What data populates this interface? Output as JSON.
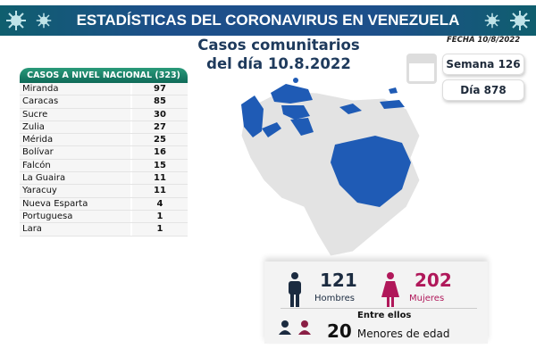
{
  "header": {
    "title": "ESTADÍSTICAS DEL CORONAVIRUS EN VENEZUELA"
  },
  "subtitle": {
    "line1": "Casos comunitarios",
    "line2": "del día 10.8.2022"
  },
  "fecha": "FECHA 10/8/2022",
  "semana": "Semana 126",
  "dia": "Día 878",
  "table": {
    "header": "CASOS A NIVEL NACIONAL (323)",
    "rows": [
      {
        "state": "Miranda",
        "cases": "97"
      },
      {
        "state": "Caracas",
        "cases": "85"
      },
      {
        "state": "Sucre",
        "cases": "30"
      },
      {
        "state": "Zulia",
        "cases": "27"
      },
      {
        "state": "Mérida",
        "cases": "25"
      },
      {
        "state": "Bolívar",
        "cases": "16"
      },
      {
        "state": "Falcón",
        "cases": "15"
      },
      {
        "state": "La Guaira",
        "cases": "11"
      },
      {
        "state": "Yaracuy",
        "cases": "11"
      },
      {
        "state": "Nueva Esparta",
        "cases": "4"
      },
      {
        "state": "Portuguesa",
        "cases": "1"
      },
      {
        "state": "Lara",
        "cases": "1"
      }
    ]
  },
  "gender": {
    "men_count": "121",
    "men_label": "Hombres",
    "women_count": "202",
    "women_label": "Mujeres",
    "minors_intro": "Entre ellos",
    "minors_count": "20",
    "minors_label": "Menores de edad"
  },
  "colors": {
    "highlight": "#1f5bb5",
    "men": "#1b2b40",
    "women": "#b0185a"
  }
}
